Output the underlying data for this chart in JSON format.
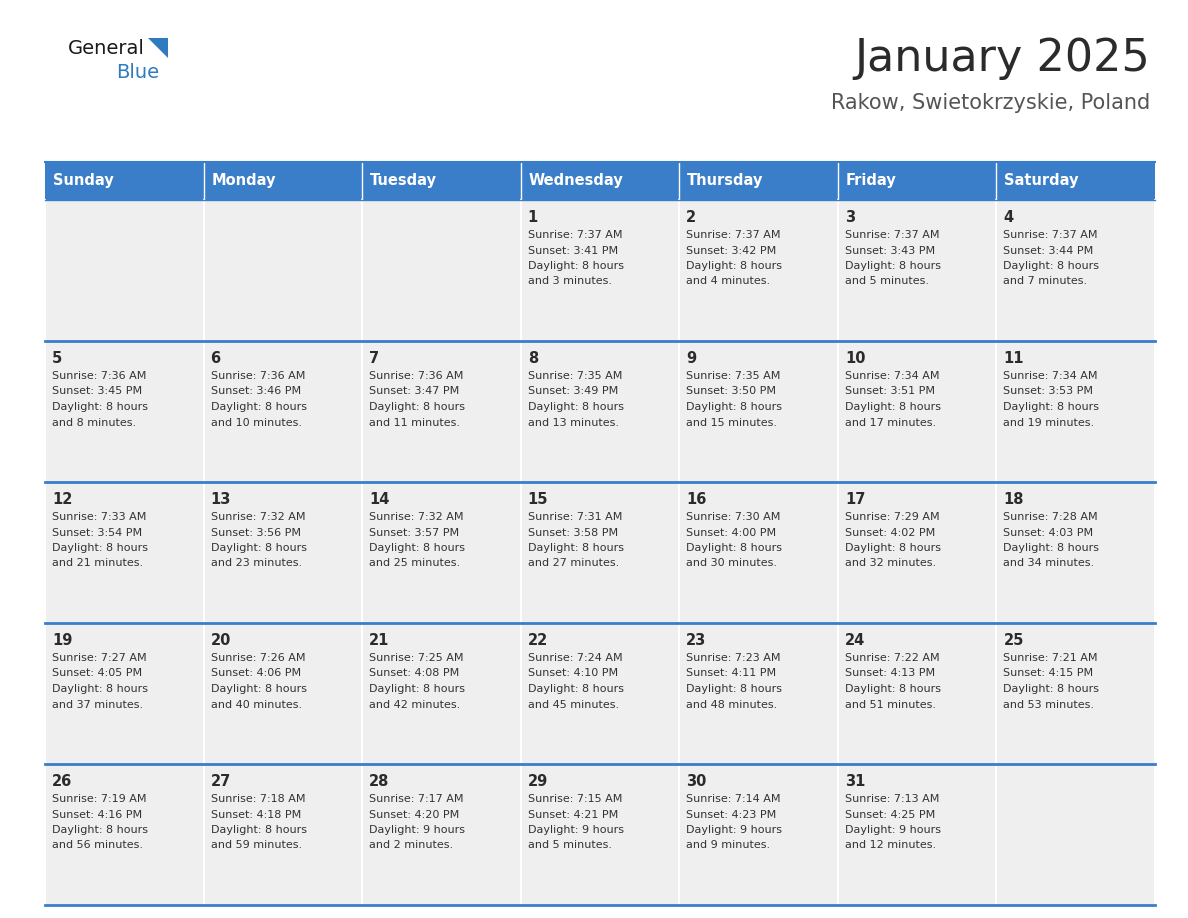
{
  "title": "January 2025",
  "subtitle": "Rakow, Swietokrzyskie, Poland",
  "days_of_week": [
    "Sunday",
    "Monday",
    "Tuesday",
    "Wednesday",
    "Thursday",
    "Friday",
    "Saturday"
  ],
  "header_bg": "#3A7DC9",
  "header_text": "#FFFFFF",
  "cell_bg_light": "#EFEFEF",
  "border_color": "#3A7DC9",
  "text_color": "#333333",
  "title_color": "#2B2B2B",
  "subtitle_color": "#555555",
  "day_num_color": "#2B2B2B",
  "calendar_data": [
    [
      null,
      null,
      null,
      {
        "day": 1,
        "sunrise": "7:37 AM",
        "sunset": "3:41 PM",
        "daylight": "8 hours",
        "daylight2": "and 3 minutes."
      },
      {
        "day": 2,
        "sunrise": "7:37 AM",
        "sunset": "3:42 PM",
        "daylight": "8 hours",
        "daylight2": "and 4 minutes."
      },
      {
        "day": 3,
        "sunrise": "7:37 AM",
        "sunset": "3:43 PM",
        "daylight": "8 hours",
        "daylight2": "and 5 minutes."
      },
      {
        "day": 4,
        "sunrise": "7:37 AM",
        "sunset": "3:44 PM",
        "daylight": "8 hours",
        "daylight2": "and 7 minutes."
      }
    ],
    [
      {
        "day": 5,
        "sunrise": "7:36 AM",
        "sunset": "3:45 PM",
        "daylight": "8 hours",
        "daylight2": "and 8 minutes."
      },
      {
        "day": 6,
        "sunrise": "7:36 AM",
        "sunset": "3:46 PM",
        "daylight": "8 hours",
        "daylight2": "and 10 minutes."
      },
      {
        "day": 7,
        "sunrise": "7:36 AM",
        "sunset": "3:47 PM",
        "daylight": "8 hours",
        "daylight2": "and 11 minutes."
      },
      {
        "day": 8,
        "sunrise": "7:35 AM",
        "sunset": "3:49 PM",
        "daylight": "8 hours",
        "daylight2": "and 13 minutes."
      },
      {
        "day": 9,
        "sunrise": "7:35 AM",
        "sunset": "3:50 PM",
        "daylight": "8 hours",
        "daylight2": "and 15 minutes."
      },
      {
        "day": 10,
        "sunrise": "7:34 AM",
        "sunset": "3:51 PM",
        "daylight": "8 hours",
        "daylight2": "and 17 minutes."
      },
      {
        "day": 11,
        "sunrise": "7:34 AM",
        "sunset": "3:53 PM",
        "daylight": "8 hours",
        "daylight2": "and 19 minutes."
      }
    ],
    [
      {
        "day": 12,
        "sunrise": "7:33 AM",
        "sunset": "3:54 PM",
        "daylight": "8 hours",
        "daylight2": "and 21 minutes."
      },
      {
        "day": 13,
        "sunrise": "7:32 AM",
        "sunset": "3:56 PM",
        "daylight": "8 hours",
        "daylight2": "and 23 minutes."
      },
      {
        "day": 14,
        "sunrise": "7:32 AM",
        "sunset": "3:57 PM",
        "daylight": "8 hours",
        "daylight2": "and 25 minutes."
      },
      {
        "day": 15,
        "sunrise": "7:31 AM",
        "sunset": "3:58 PM",
        "daylight": "8 hours",
        "daylight2": "and 27 minutes."
      },
      {
        "day": 16,
        "sunrise": "7:30 AM",
        "sunset": "4:00 PM",
        "daylight": "8 hours",
        "daylight2": "and 30 minutes."
      },
      {
        "day": 17,
        "sunrise": "7:29 AM",
        "sunset": "4:02 PM",
        "daylight": "8 hours",
        "daylight2": "and 32 minutes."
      },
      {
        "day": 18,
        "sunrise": "7:28 AM",
        "sunset": "4:03 PM",
        "daylight": "8 hours",
        "daylight2": "and 34 minutes."
      }
    ],
    [
      {
        "day": 19,
        "sunrise": "7:27 AM",
        "sunset": "4:05 PM",
        "daylight": "8 hours",
        "daylight2": "and 37 minutes."
      },
      {
        "day": 20,
        "sunrise": "7:26 AM",
        "sunset": "4:06 PM",
        "daylight": "8 hours",
        "daylight2": "and 40 minutes."
      },
      {
        "day": 21,
        "sunrise": "7:25 AM",
        "sunset": "4:08 PM",
        "daylight": "8 hours",
        "daylight2": "and 42 minutes."
      },
      {
        "day": 22,
        "sunrise": "7:24 AM",
        "sunset": "4:10 PM",
        "daylight": "8 hours",
        "daylight2": "and 45 minutes."
      },
      {
        "day": 23,
        "sunrise": "7:23 AM",
        "sunset": "4:11 PM",
        "daylight": "8 hours",
        "daylight2": "and 48 minutes."
      },
      {
        "day": 24,
        "sunrise": "7:22 AM",
        "sunset": "4:13 PM",
        "daylight": "8 hours",
        "daylight2": "and 51 minutes."
      },
      {
        "day": 25,
        "sunrise": "7:21 AM",
        "sunset": "4:15 PM",
        "daylight": "8 hours",
        "daylight2": "and 53 minutes."
      }
    ],
    [
      {
        "day": 26,
        "sunrise": "7:19 AM",
        "sunset": "4:16 PM",
        "daylight": "8 hours",
        "daylight2": "and 56 minutes."
      },
      {
        "day": 27,
        "sunrise": "7:18 AM",
        "sunset": "4:18 PM",
        "daylight": "8 hours",
        "daylight2": "and 59 minutes."
      },
      {
        "day": 28,
        "sunrise": "7:17 AM",
        "sunset": "4:20 PM",
        "daylight": "9 hours",
        "daylight2": "and 2 minutes."
      },
      {
        "day": 29,
        "sunrise": "7:15 AM",
        "sunset": "4:21 PM",
        "daylight": "9 hours",
        "daylight2": "and 5 minutes."
      },
      {
        "day": 30,
        "sunrise": "7:14 AM",
        "sunset": "4:23 PM",
        "daylight": "9 hours",
        "daylight2": "and 9 minutes."
      },
      {
        "day": 31,
        "sunrise": "7:13 AM",
        "sunset": "4:25 PM",
        "daylight": "9 hours",
        "daylight2": "and 12 minutes."
      },
      null
    ]
  ],
  "logo_general_color": "#1A1A1A",
  "logo_blue_color": "#2E7BBF"
}
